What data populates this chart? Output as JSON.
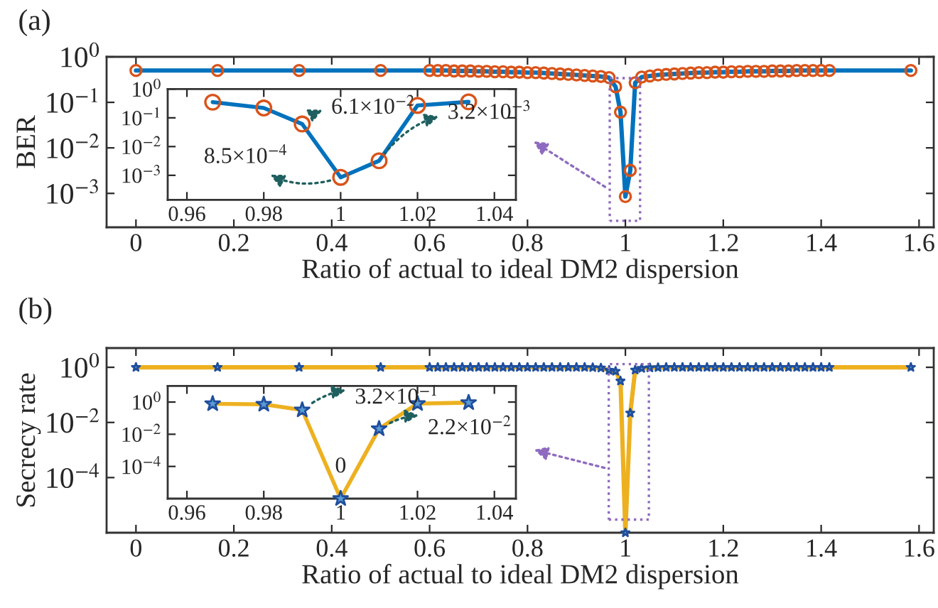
{
  "chart_data": [
    {
      "type": "line",
      "xlabel": "Ratio of actual to ideal DM2 dispersion",
      "ylabel": "BER",
      "log": "y",
      "annotations": [
        "(a)"
      ],
      "xlim": [
        -0.06,
        1.63
      ],
      "xticks": [
        0,
        0.2,
        0.4,
        0.6,
        0.8,
        1,
        1.2,
        1.4,
        1.6
      ],
      "ylim": [
        0.00018,
        1
      ],
      "yticks": [
        {
          "value": 1,
          "label": "10$^{0}$"
        },
        {
          "value": 0.1,
          "label": "10$^{−1}$"
        },
        {
          "value": 0.01,
          "label": "10$^{−2}$"
        },
        {
          "value": 0.001,
          "label": "10$^{−3}$"
        }
      ],
      "x": [
        0,
        0.1667,
        0.3333,
        0.5,
        0.6,
        0.6167,
        0.6333,
        0.65,
        0.6667,
        0.6833,
        0.7,
        0.7167,
        0.7333,
        0.75,
        0.7667,
        0.7833,
        0.8,
        0.8167,
        0.8333,
        0.85,
        0.8667,
        0.8833,
        0.9,
        0.9167,
        0.9333,
        0.95,
        0.9667,
        0.98,
        0.99,
        1,
        1.01,
        1.02,
        1.0333,
        1.05,
        1.0667,
        1.0833,
        1.1,
        1.1167,
        1.1333,
        1.15,
        1.1667,
        1.1833,
        1.2,
        1.2167,
        1.2333,
        1.25,
        1.2667,
        1.2833,
        1.3,
        1.3167,
        1.3333,
        1.35,
        1.3667,
        1.3833,
        1.4,
        1.4167,
        1.5833
      ],
      "series": [
        {
          "type": "line",
          "color": "#0072bd",
          "line_style": "solid",
          "values": [
            0.5,
            0.5,
            0.5,
            0.5,
            0.5,
            0.5,
            0.5,
            0.49,
            0.49,
            0.49,
            0.48,
            0.48,
            0.47,
            0.47,
            0.46,
            0.46,
            0.45,
            0.45,
            0.44,
            0.43,
            0.42,
            0.41,
            0.4,
            0.39,
            0.38,
            0.37,
            0.35,
            0.22,
            0.061,
            0.00085,
            0.0032,
            0.27,
            0.36,
            0.38,
            0.4,
            0.41,
            0.42,
            0.43,
            0.44,
            0.45,
            0.45,
            0.46,
            0.46,
            0.47,
            0.47,
            0.48,
            0.48,
            0.48,
            0.49,
            0.49,
            0.49,
            0.5,
            0.5,
            0.5,
            0.5,
            0.5,
            0.5
          ]
        },
        {
          "type": "scatter",
          "color": "#d95319",
          "marker": "circle",
          "values": [
            0.5,
            0.5,
            0.5,
            0.5,
            0.5,
            0.5,
            0.5,
            0.49,
            0.49,
            0.49,
            0.48,
            0.48,
            0.47,
            0.47,
            0.46,
            0.46,
            0.45,
            0.45,
            0.44,
            0.43,
            0.42,
            0.41,
            0.4,
            0.39,
            0.38,
            0.37,
            0.35,
            0.22,
            0.061,
            0.00085,
            0.0032,
            0.27,
            0.36,
            0.38,
            0.4,
            0.41,
            0.42,
            0.43,
            0.44,
            0.45,
            0.45,
            0.46,
            0.46,
            0.47,
            0.47,
            0.48,
            0.48,
            0.48,
            0.49,
            0.49,
            0.49,
            0.5,
            0.5,
            0.5,
            0.5,
            0.5,
            0.5
          ]
        }
      ]
    },
    {
      "type": "line",
      "log": "y",
      "annotations": [
        {
          "text": "6.1×10$^{−2}$",
          "x": 0.99,
          "y": 0.061
        },
        {
          "text": "3.2×10$^{−3}$",
          "x": 1.01,
          "y": 0.0032
        },
        {
          "text": "8.5×10$^{−4}$",
          "x": 1,
          "y": 0.00085
        }
      ],
      "xlim": [
        0.955,
        1.0456
      ],
      "xticks": [
        0.96,
        0.98,
        1,
        1.02,
        1.04
      ],
      "ylim": [
        0.00014,
        1
      ],
      "yticks": [
        {
          "value": 1,
          "label": "10$^{0}$"
        },
        {
          "value": 0.1,
          "label": "10$^{−1}$"
        },
        {
          "value": 0.01,
          "label": "10$^{−2}$"
        },
        {
          "value": 0.001,
          "label": "10$^{−3}$"
        }
      ],
      "x": [
        0.9667,
        0.98,
        0.99,
        1,
        1.01,
        1.02,
        1.0333
      ],
      "series": [
        {
          "type": "line",
          "color": "#0072bd",
          "line_style": "solid",
          "values": [
            0.35,
            0.22,
            0.061,
            0.00085,
            0.0032,
            0.27,
            0.36
          ]
        },
        {
          "type": "scatter",
          "color": "#d95319",
          "marker": "circle",
          "values": [
            0.35,
            0.22,
            0.061,
            0.00085,
            0.0032,
            0.27,
            0.36
          ]
        }
      ]
    },
    {
      "type": "line",
      "xlabel": "Ratio of actual to ideal DM2 dispersion",
      "ylabel": "Secrecy rate",
      "log": "y",
      "annotations": [
        "(b)"
      ],
      "xlim": [
        -0.06,
        1.63
      ],
      "xticks": [
        0,
        0.2,
        0.4,
        0.6,
        0.8,
        1,
        1.2,
        1.4,
        1.6
      ],
      "ylim": [
        1e-06,
        5
      ],
      "yticks": [
        {
          "value": 1,
          "label": "10$^{0}$"
        },
        {
          "value": 0.01,
          "label": "10$^{−2}$"
        },
        {
          "value": 0.0001,
          "label": "10$^{−4}$"
        }
      ],
      "x": [
        0,
        0.1667,
        0.3333,
        0.5,
        0.6,
        0.6167,
        0.6333,
        0.65,
        0.6667,
        0.6833,
        0.7,
        0.7167,
        0.7333,
        0.75,
        0.7667,
        0.7833,
        0.8,
        0.8167,
        0.8333,
        0.85,
        0.8667,
        0.8833,
        0.9,
        0.9167,
        0.9333,
        0.95,
        0.9667,
        0.98,
        0.99,
        1,
        1.01,
        1.02,
        1.0333,
        1.05,
        1.0667,
        1.0833,
        1.1,
        1.1167,
        1.1333,
        1.15,
        1.1667,
        1.1833,
        1.2,
        1.2167,
        1.2333,
        1.25,
        1.2667,
        1.2833,
        1.3,
        1.3167,
        1.3333,
        1.35,
        1.3667,
        1.3833,
        1.4,
        1.4167,
        1.5833
      ],
      "series": [
        {
          "type": "line",
          "color": "#edb120",
          "line_style": "solid",
          "values": [
            1,
            1,
            1,
            1,
            1,
            1,
            1,
            1,
            1,
            1,
            1,
            1,
            1,
            1,
            1,
            1,
            1,
            1,
            1,
            1,
            1,
            1,
            1,
            1,
            0.98,
            0.95,
            0.78,
            0.72,
            0.32,
            1e-06,
            0.022,
            0.8,
            0.92,
            0.96,
            0.98,
            1,
            1,
            1,
            1,
            1,
            1,
            1,
            1,
            1,
            1,
            1,
            1,
            1,
            1,
            1,
            1,
            1,
            1,
            1,
            1,
            1,
            1
          ]
        },
        {
          "type": "scatter",
          "color": "#1f4e9c",
          "marker": "star",
          "values": [
            1,
            1,
            1,
            1,
            1,
            1,
            1,
            1,
            1,
            1,
            1,
            1,
            1,
            1,
            1,
            1,
            1,
            1,
            1,
            1,
            1,
            1,
            1,
            1,
            0.98,
            0.95,
            0.78,
            0.72,
            0.32,
            1e-06,
            0.022,
            0.8,
            0.92,
            0.96,
            0.98,
            1,
            1,
            1,
            1,
            1,
            1,
            1,
            1,
            1,
            1,
            1,
            1,
            1,
            1,
            1,
            1,
            1,
            1,
            1,
            1,
            1,
            1
          ]
        }
      ]
    },
    {
      "type": "line",
      "log": "y",
      "annotations": [
        {
          "text": "3.2×10$^{−1}$",
          "x": 0.99,
          "y": 0.32
        },
        {
          "text": "2.2×10$^{−2}$",
          "x": 1.01,
          "y": 0.022
        },
        {
          "text": "0",
          "x": 1,
          "y": 1e-06
        }
      ],
      "xlim": [
        0.955,
        1.0456
      ],
      "xticks": [
        0.96,
        0.98,
        1,
        1.02,
        1.04
      ],
      "ylim": [
        1e-06,
        10
      ],
      "yticks": [
        {
          "value": 1,
          "label": "10$^{0}$"
        },
        {
          "value": 0.01,
          "label": "10$^{−2}$"
        },
        {
          "value": 0.0001,
          "label": "10$^{−4}$"
        }
      ],
      "x": [
        0.9667,
        0.98,
        0.99,
        1,
        1.01,
        1.02,
        1.0333
      ],
      "series": [
        {
          "type": "line",
          "color": "#edb120",
          "line_style": "solid",
          "values": [
            0.78,
            0.72,
            0.32,
            1e-06,
            0.022,
            0.8,
            0.92
          ]
        },
        {
          "type": "scatter",
          "color": "#1f4e9c",
          "marker": "star",
          "values": [
            0.78,
            0.72,
            0.32,
            1e-06,
            0.022,
            0.8,
            0.92
          ]
        }
      ]
    }
  ]
}
